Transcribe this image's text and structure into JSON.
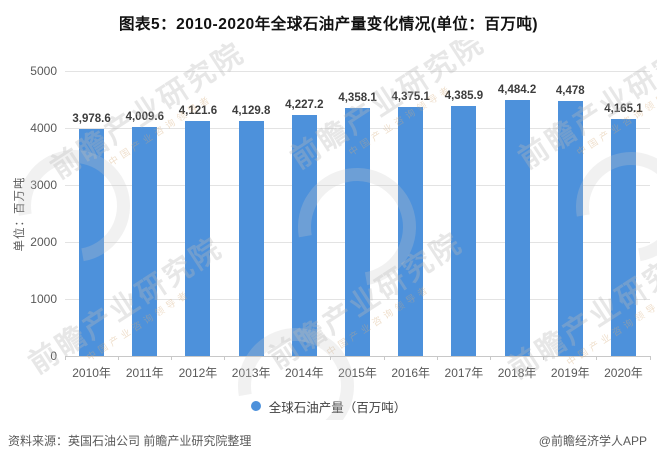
{
  "title": "图表5：2010-2020年全球石油产量变化情况(单位：百万吨)",
  "chart_data": {
    "type": "bar",
    "title": "图表5：2010-2020年全球石油产量变化情况(单位：百万吨)",
    "xlabel": "",
    "ylabel": "单位：百万吨",
    "ylim": [
      0,
      5000
    ],
    "yticks": [
      0,
      1000,
      2000,
      3000,
      4000,
      5000
    ],
    "grid": true,
    "legend_position": "bottom",
    "categories": [
      "2010年",
      "2011年",
      "2012年",
      "2013年",
      "2014年",
      "2015年",
      "2016年",
      "2017年",
      "2018年",
      "2019年",
      "2020年"
    ],
    "values": [
      3978.6,
      4009.6,
      4121.6,
      4129.8,
      4227.2,
      4358.1,
      4375.1,
      4385.9,
      4484.2,
      4478,
      4165.1
    ],
    "value_labels": [
      "3,978.6",
      "4,009.6",
      "4,121.6",
      "4,129.8",
      "4,227.2",
      "4,358.1",
      "4,375.1",
      "4,385.9",
      "4,484.2",
      "4,478",
      "4,165.1"
    ],
    "bar_color": "#4D91DB",
    "series_name": "全球石油产量（百万吨）"
  },
  "legend": {
    "label": "全球石油产量（百万吨）"
  },
  "footer": {
    "source": "资料来源：英国石油公司 前瞻产业研究院整理",
    "credit": "@前瞻经济学人APP"
  },
  "watermark": {
    "main": "前瞻产业研究院",
    "sub": "中国产业咨询领导者"
  },
  "colors": {
    "bar": "#4D91DB",
    "gridline": "#e3e3e3",
    "axis_text": "#595959",
    "label_text": "#3d3d3d"
  }
}
